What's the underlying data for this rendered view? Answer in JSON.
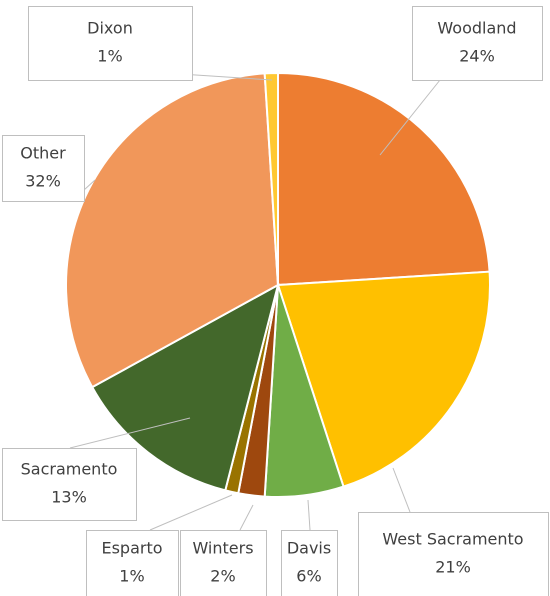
{
  "chart_data": {
    "type": "pie",
    "categories": [
      "Woodland",
      "West Sacramento",
      "Davis",
      "Winters",
      "Esparto",
      "Sacramento",
      "Other",
      "Dixon"
    ],
    "values": [
      24,
      21,
      6,
      2,
      1,
      13,
      32,
      1
    ],
    "value_labels": [
      "24%",
      "21%",
      "6%",
      "2%",
      "1%",
      "13%",
      "32%",
      "1%"
    ],
    "colors": [
      "#ED7D31",
      "#FFC000",
      "#70AD47",
      "#9E480E",
      "#997300",
      "#43682B",
      "#F1975A",
      "#FFC832"
    ]
  }
}
